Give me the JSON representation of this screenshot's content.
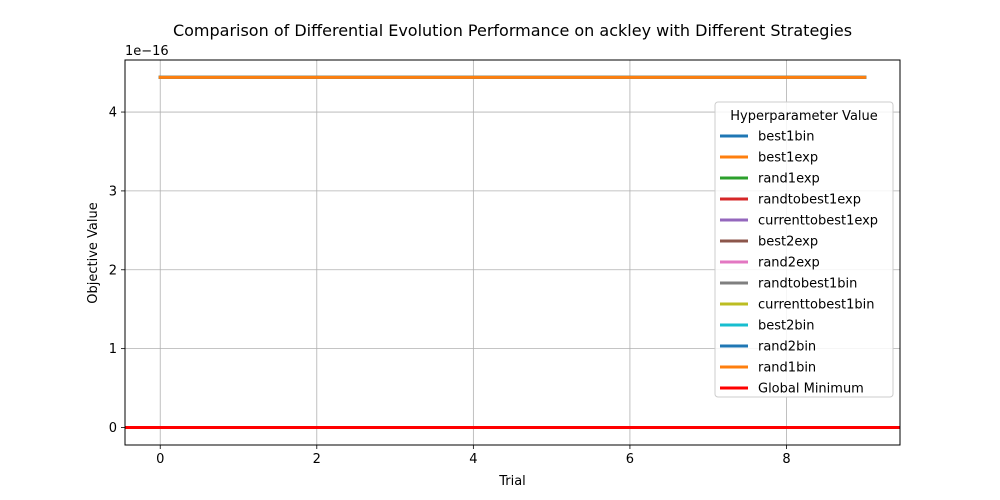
{
  "chart_data": {
    "type": "line",
    "title": "Comparison of Differential Evolution Performance on ackley with Different Strategies",
    "xlabel": "Trial",
    "ylabel": "Objective Value",
    "offset_label": "1e−16",
    "xlim": [
      -0.45,
      9.45
    ],
    "ylim": [
      -0.222,
      4.66
    ],
    "xticks": [
      0,
      2,
      4,
      6,
      8
    ],
    "xtick_labels": [
      "0",
      "2",
      "4",
      "6",
      "8"
    ],
    "yticks": [
      0,
      1,
      2,
      3,
      4
    ],
    "ytick_labels": [
      "0",
      "1",
      "2",
      "3",
      "4"
    ],
    "grid": true,
    "legend_title": "Hyperparameter Value",
    "legend_position": "right",
    "x": [
      0,
      1,
      2,
      3,
      4,
      5,
      6,
      7,
      8,
      9
    ],
    "series": [
      {
        "name": "best1bin",
        "color": "#1f77b4",
        "values": [
          4.44,
          4.44,
          4.44,
          4.44,
          4.44,
          4.44,
          4.44,
          4.44,
          4.44,
          4.44
        ]
      },
      {
        "name": "best1exp",
        "color": "#ff7f0e",
        "values": [
          4.44,
          4.44,
          4.44,
          4.44,
          4.44,
          4.44,
          4.44,
          4.44,
          4.44,
          4.44
        ]
      },
      {
        "name": "rand1exp",
        "color": "#2ca02c",
        "values": [
          4.44,
          4.44,
          4.44,
          4.44,
          4.44,
          4.44,
          4.44,
          4.44,
          4.44,
          4.44
        ]
      },
      {
        "name": "randtobest1exp",
        "color": "#d62728",
        "values": [
          4.44,
          4.44,
          4.44,
          4.44,
          4.44,
          4.44,
          4.44,
          4.44,
          4.44,
          4.44
        ]
      },
      {
        "name": "currenttobest1exp",
        "color": "#9467bd",
        "values": [
          4.44,
          4.44,
          4.44,
          4.44,
          4.44,
          4.44,
          4.44,
          4.44,
          4.44,
          4.44
        ]
      },
      {
        "name": "best2exp",
        "color": "#8c564b",
        "values": [
          4.44,
          4.44,
          4.44,
          4.44,
          4.44,
          4.44,
          4.44,
          4.44,
          4.44,
          4.44
        ]
      },
      {
        "name": "rand2exp",
        "color": "#e377c2",
        "values": [
          4.44,
          4.44,
          4.44,
          4.44,
          4.44,
          4.44,
          4.44,
          4.44,
          4.44,
          4.44
        ]
      },
      {
        "name": "randtobest1bin",
        "color": "#7f7f7f",
        "values": [
          4.44,
          4.44,
          4.44,
          4.44,
          4.44,
          4.44,
          4.44,
          4.44,
          4.44,
          4.44
        ]
      },
      {
        "name": "currenttobest1bin",
        "color": "#bcbd22",
        "values": [
          4.44,
          4.44,
          4.44,
          4.44,
          4.44,
          4.44,
          4.44,
          4.44,
          4.44,
          4.44
        ]
      },
      {
        "name": "best2bin",
        "color": "#17becf",
        "values": [
          4.44,
          4.44,
          4.44,
          4.44,
          4.44,
          4.44,
          4.44,
          4.44,
          4.44,
          4.44
        ]
      },
      {
        "name": "rand2bin",
        "color": "#1f77b4",
        "values": [
          4.44,
          4.44,
          4.44,
          4.44,
          4.44,
          4.44,
          4.44,
          4.44,
          4.44,
          4.44
        ]
      },
      {
        "name": "rand1bin",
        "color": "#ff7f0e",
        "values": [
          4.44,
          4.44,
          4.44,
          4.44,
          4.44,
          4.44,
          4.44,
          4.44,
          4.44,
          4.44
        ]
      }
    ],
    "reference_line": {
      "name": "Global Minimum",
      "color": "#ff0000",
      "y": 0
    }
  }
}
